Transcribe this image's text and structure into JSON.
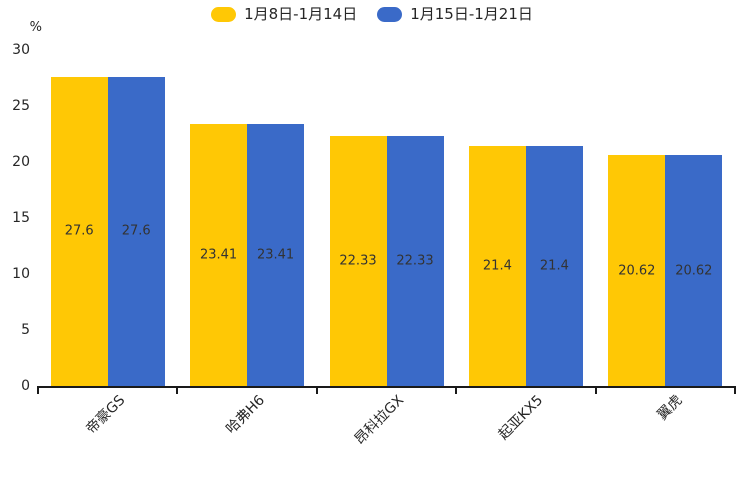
{
  "chart_data": {
    "type": "bar",
    "title": "",
    "categories": [
      "帝豪GS",
      "哈弗H6",
      "昂科拉GX",
      "起亚KX5",
      "翼虎"
    ],
    "series": [
      {
        "name": "1月8日-1月14日",
        "color": "#FFC805",
        "values": [
          27.6,
          23.41,
          22.33,
          21.4,
          20.62
        ]
      },
      {
        "name": "1月15日-1月21日",
        "color": "#3A6AC8",
        "values": [
          27.6,
          23.41,
          22.33,
          21.4,
          20.62
        ]
      }
    ],
    "bar_value_labels": [
      "27.6",
      "23.41",
      "22.33",
      "21.4",
      "20.62"
    ],
    "xlabel": "",
    "ylabel": "%",
    "ylim": [
      0,
      30
    ],
    "yticks": [
      0,
      5,
      10,
      15,
      20,
      25,
      30
    ],
    "grid": false,
    "legend_position": "top",
    "xtick_rotation": 45,
    "colors": {
      "background": "#ffffff",
      "axis": "#1a1a1a",
      "tick_label": "#262626",
      "bar_label": "#333333"
    }
  }
}
